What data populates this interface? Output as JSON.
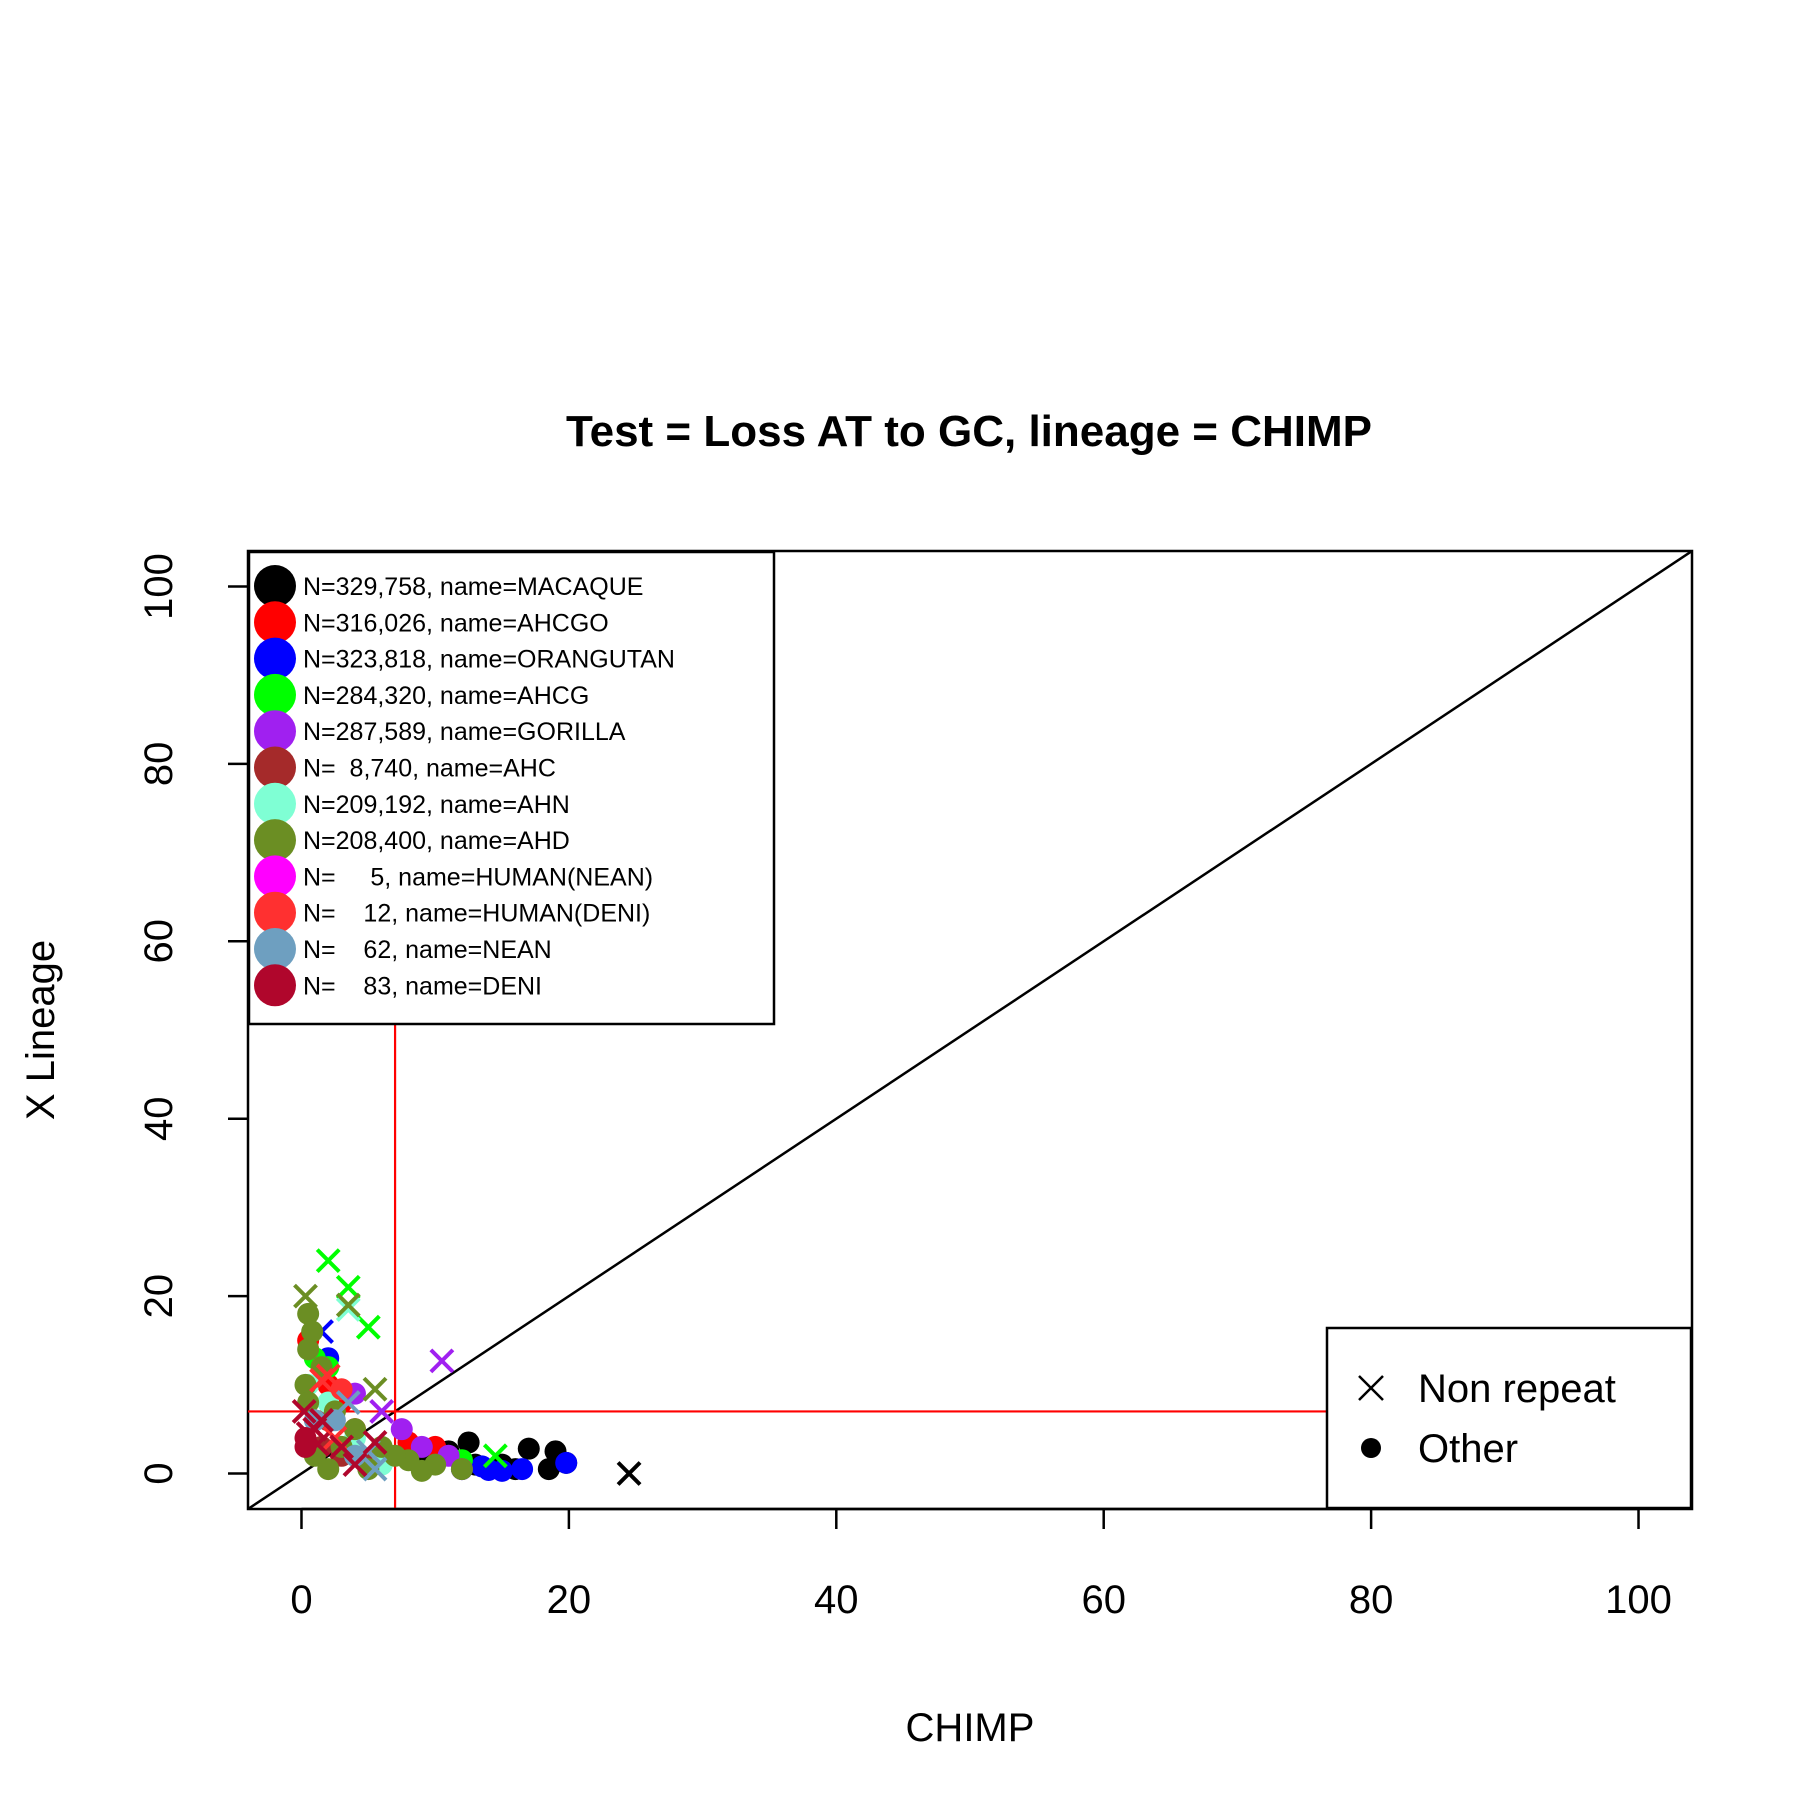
{
  "chart_data": {
    "type": "scatter",
    "title": "Test = Loss AT to GC, lineage = CHIMP",
    "xlabel": "CHIMP",
    "ylabel": "X Lineage",
    "xlim": [
      -4,
      104
    ],
    "ylim": [
      -4,
      104
    ],
    "x_ticks": [
      "0",
      "20",
      "40",
      "60",
      "80",
      "100"
    ],
    "y_ticks": [
      "0",
      "20",
      "40",
      "60",
      "80",
      "100"
    ],
    "reference_lines": {
      "diagonal": "y = x",
      "vertical_x": 7,
      "horizontal_y": 7,
      "threshold_color": "#ff0000"
    },
    "legend_position": "top-left",
    "series": [
      {
        "label": "N=329,758, name=MACAQUE",
        "color": "#000000",
        "points": [
          [
            24.5,
            0,
            "x"
          ],
          [
            17,
            2.8,
            "o"
          ],
          [
            19,
            2.5,
            "o"
          ],
          [
            19.8,
            1.2,
            "o"
          ],
          [
            18.5,
            0.5,
            "o"
          ],
          [
            12.5,
            3.5,
            "o"
          ],
          [
            15,
            1,
            "o"
          ],
          [
            11,
            2.5,
            "o"
          ],
          [
            13,
            1,
            "o"
          ],
          [
            9,
            2,
            "o"
          ],
          [
            16,
            0.5,
            "o"
          ]
        ]
      },
      {
        "label": "N=316,026, name=AHCGO",
        "color": "#ff0000",
        "points": [
          [
            0.5,
            15,
            "o"
          ],
          [
            2,
            10,
            "o"
          ],
          [
            3,
            8,
            "o"
          ],
          [
            8,
            3.5,
            "o"
          ],
          [
            10,
            3,
            "o"
          ],
          [
            6,
            2,
            "o"
          ],
          [
            4,
            5,
            "o"
          ],
          [
            1,
            5,
            "x"
          ]
        ]
      },
      {
        "label": "N=323,818, name=ORANGUTAN",
        "color": "#0000ff",
        "points": [
          [
            19.8,
            1.2,
            "o"
          ],
          [
            16.5,
            0.5,
            "o"
          ],
          [
            15,
            0.3,
            "o"
          ],
          [
            13.5,
            0.8,
            "o"
          ],
          [
            14,
            0.4,
            "o"
          ],
          [
            12,
            0.5,
            "o"
          ],
          [
            1.5,
            16,
            "x"
          ],
          [
            2,
            13,
            "o"
          ]
        ]
      },
      {
        "label": "N=284,320, name=AHCG",
        "color": "#00ff00",
        "points": [
          [
            2,
            24,
            "x"
          ],
          [
            3.5,
            21,
            "x"
          ],
          [
            5,
            16.5,
            "x"
          ],
          [
            14.5,
            2,
            "x"
          ],
          [
            1,
            13,
            "o"
          ],
          [
            2,
            12,
            "o"
          ],
          [
            12,
            1.5,
            "o"
          ]
        ]
      },
      {
        "label": "N=287,589, name=GORILLA",
        "color": "#a020f0",
        "points": [
          [
            10.5,
            12.7,
            "x"
          ],
          [
            6,
            7,
            "x"
          ],
          [
            4,
            9,
            "o"
          ],
          [
            9,
            3,
            "o"
          ],
          [
            11,
            2,
            "o"
          ],
          [
            12,
            0.5,
            "o"
          ],
          [
            7.5,
            5,
            "o"
          ]
        ]
      },
      {
        "label": "N=  8,740, name=AHC",
        "color": "#a52a2a",
        "points": [
          [
            1.5,
            3,
            "o"
          ],
          [
            3,
            2,
            "o"
          ],
          [
            2,
            6,
            "o"
          ],
          [
            5,
            1,
            "o"
          ]
        ]
      },
      {
        "label": "N=209,192, name=AHN",
        "color": "#7fffd4",
        "points": [
          [
            3.5,
            18.5,
            "x"
          ],
          [
            0.5,
            10,
            "o"
          ],
          [
            2,
            8,
            "o"
          ],
          [
            4,
            4,
            "o"
          ],
          [
            6,
            1,
            "o"
          ]
        ]
      },
      {
        "label": "N=208,400, name=AHD",
        "color": "#6b8e23",
        "points": [
          [
            0.3,
            20,
            "x"
          ],
          [
            3.5,
            19,
            "x"
          ],
          [
            0.5,
            18,
            "o"
          ],
          [
            0.8,
            16,
            "o"
          ],
          [
            0.5,
            14,
            "o"
          ],
          [
            1.5,
            12,
            "o"
          ],
          [
            0.3,
            10,
            "o"
          ],
          [
            0.5,
            8,
            "o"
          ],
          [
            5.5,
            9.5,
            "x"
          ],
          [
            2.5,
            7,
            "o"
          ],
          [
            4,
            5,
            "o"
          ],
          [
            6,
            3,
            "o"
          ],
          [
            8,
            1.5,
            "o"
          ],
          [
            10,
            1,
            "o"
          ],
          [
            3,
            3,
            "o"
          ],
          [
            1,
            2,
            "o"
          ],
          [
            5,
            0.5,
            "o"
          ],
          [
            2,
            0.5,
            "o"
          ],
          [
            9,
            0.3,
            "o"
          ],
          [
            12,
            0.5,
            "o"
          ],
          [
            7,
            2,
            "o"
          ]
        ]
      },
      {
        "label": "N=     5, name=HUMAN(NEAN)",
        "color": "#ff00ff",
        "points": []
      },
      {
        "label": "N=    12, name=HUMAN(DENI)",
        "color": "#ff3030",
        "points": [
          [
            2,
            11,
            "x"
          ],
          [
            1.5,
            10.5,
            "x"
          ],
          [
            3,
            9.5,
            "o"
          ],
          [
            2.5,
            4,
            "x"
          ]
        ]
      },
      {
        "label": "N=    62, name=NEAN",
        "color": "#6e9fc0",
        "points": [
          [
            3.5,
            8,
            "x"
          ],
          [
            5,
            2.5,
            "x"
          ],
          [
            5.5,
            0.5,
            "x"
          ],
          [
            2.5,
            6,
            "o"
          ],
          [
            4,
            2,
            "o"
          ],
          [
            1,
            6,
            "o"
          ]
        ]
      },
      {
        "label": "N=    83, name=DENI",
        "color": "#b0062c",
        "points": [
          [
            0.2,
            7,
            "x"
          ],
          [
            1,
            5,
            "x"
          ],
          [
            0.5,
            4.5,
            "x"
          ],
          [
            1.2,
            3.3,
            "x"
          ],
          [
            0.3,
            3,
            "o"
          ],
          [
            1.5,
            6,
            "x"
          ],
          [
            3,
            3,
            "x"
          ],
          [
            4,
            1,
            "x"
          ],
          [
            5.5,
            3.5,
            "x"
          ],
          [
            0.3,
            4,
            "o"
          ]
        ]
      }
    ],
    "shape_legend": {
      "position": "bottom-right",
      "items": [
        {
          "label": "Non repeat",
          "symbol": "x"
        },
        {
          "label": "Other",
          "symbol": "dot"
        }
      ]
    }
  }
}
